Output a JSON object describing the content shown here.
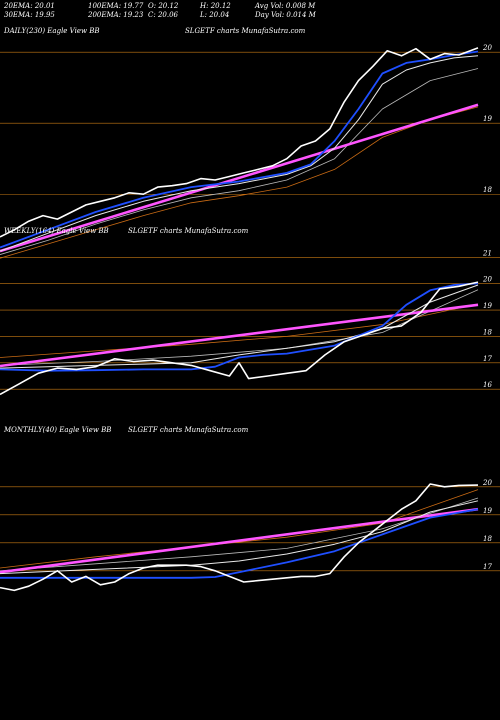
{
  "header": {
    "row1": [
      "20EMA: 20.01",
      "100EMA: 19.77",
      "O: 20.12",
      "H: 20.12",
      "Avg Vol: 0.008  M"
    ],
    "row2": [
      "30EMA: 19.95",
      "200EMA: 19.23",
      "C: 20.06",
      "L: 20.04",
      "Day Vol: 0.014  M"
    ]
  },
  "colors": {
    "background": "#000000",
    "price": "#ffffff",
    "ema20": "#1f4fff",
    "ema30": "#e8e8e8",
    "ema100": "#b8b8b8",
    "ema200": "#c86a14",
    "trend": "#ff55ff",
    "gridline": "#c87a14",
    "text": "#ffffff"
  },
  "chart_data": [
    {
      "type": "line",
      "label": "DAILY(230) Eagle  View  BB",
      "watermark": "SLGETF charts MunafaSutra.com",
      "yticks": [
        18,
        19,
        20
      ],
      "ylim": [
        17.75,
        20.2
      ],
      "xlim": [
        0,
        100
      ],
      "series": [
        {
          "key": "price",
          "x": [
            0,
            3,
            6,
            9,
            12,
            15,
            18,
            21,
            24,
            27,
            30,
            33,
            36,
            39,
            42,
            45,
            48,
            51,
            54,
            57,
            60,
            63,
            66,
            69,
            72,
            75,
            78,
            81,
            84,
            87,
            90,
            93,
            96,
            100
          ],
          "y": [
            17.4,
            17.5,
            17.62,
            17.7,
            17.65,
            17.75,
            17.85,
            17.9,
            17.95,
            18.02,
            18.0,
            18.1,
            18.12,
            18.15,
            18.22,
            18.2,
            18.25,
            18.3,
            18.35,
            18.4,
            18.5,
            18.68,
            18.75,
            18.92,
            19.3,
            19.6,
            19.8,
            20.02,
            19.95,
            20.05,
            19.9,
            19.98,
            19.96,
            20.06
          ]
        },
        {
          "key": "ema20",
          "x": [
            0,
            10,
            20,
            30,
            40,
            50,
            60,
            65,
            70,
            75,
            80,
            85,
            90,
            95,
            100
          ],
          "y": [
            17.25,
            17.5,
            17.75,
            17.95,
            18.1,
            18.18,
            18.3,
            18.42,
            18.75,
            19.2,
            19.7,
            19.85,
            19.9,
            19.96,
            20.01
          ]
        },
        {
          "key": "ema30",
          "x": [
            0,
            10,
            20,
            30,
            40,
            50,
            60,
            65,
            70,
            75,
            80,
            85,
            90,
            95,
            100
          ],
          "y": [
            17.2,
            17.45,
            17.7,
            17.9,
            18.05,
            18.15,
            18.28,
            18.4,
            18.65,
            19.05,
            19.55,
            19.75,
            19.85,
            19.92,
            19.95
          ]
        },
        {
          "key": "ema100",
          "x": [
            0,
            10,
            20,
            30,
            40,
            50,
            60,
            70,
            80,
            90,
            100
          ],
          "y": [
            17.15,
            17.35,
            17.58,
            17.78,
            17.95,
            18.05,
            18.2,
            18.5,
            19.2,
            19.6,
            19.77
          ]
        },
        {
          "key": "ema200",
          "x": [
            0,
            10,
            20,
            30,
            40,
            50,
            60,
            70,
            80,
            90,
            100
          ],
          "y": [
            17.1,
            17.3,
            17.5,
            17.7,
            17.88,
            17.98,
            18.1,
            18.35,
            18.8,
            19.05,
            19.23
          ]
        },
        {
          "key": "trend",
          "x": [
            0,
            100
          ],
          "y": [
            17.2,
            19.26
          ]
        }
      ]
    },
    {
      "type": "line",
      "label": "WEEKLY(164) Eagle  View  BB",
      "watermark": "SLGETF charts MunafaSutra.com",
      "yticks": [
        16,
        17,
        18,
        19,
        20,
        21
      ],
      "ylim": [
        15.4,
        21.2
      ],
      "xlim": [
        0,
        100
      ],
      "series": [
        {
          "key": "price",
          "x": [
            0,
            4,
            8,
            12,
            16,
            20,
            24,
            28,
            32,
            36,
            40,
            44,
            48,
            50,
            52,
            56,
            60,
            64,
            68,
            72,
            76,
            80,
            84,
            88,
            92,
            96,
            100
          ],
          "y": [
            15.8,
            16.2,
            16.6,
            16.8,
            16.75,
            16.85,
            17.15,
            17.05,
            17.1,
            17.0,
            16.9,
            16.7,
            16.5,
            17.0,
            16.4,
            16.5,
            16.6,
            16.7,
            17.3,
            17.8,
            18.05,
            18.3,
            18.4,
            18.9,
            19.8,
            19.9,
            20.06
          ]
        },
        {
          "key": "ema20",
          "x": [
            0,
            10,
            20,
            30,
            40,
            45,
            50,
            55,
            60,
            70,
            80,
            85,
            90,
            95,
            100
          ],
          "y": [
            16.75,
            16.7,
            16.72,
            16.75,
            16.75,
            16.85,
            17.2,
            17.3,
            17.35,
            17.65,
            18.4,
            19.2,
            19.75,
            19.95,
            20.01
          ]
        },
        {
          "key": "ema30",
          "x": [
            0,
            10,
            20,
            30,
            40,
            50,
            60,
            70,
            80,
            90,
            100
          ],
          "y": [
            16.8,
            16.85,
            16.9,
            16.95,
            17.0,
            17.3,
            17.55,
            17.8,
            18.3,
            19.3,
            19.95
          ]
        },
        {
          "key": "ema100",
          "x": [
            0,
            20,
            40,
            60,
            80,
            100
          ],
          "y": [
            16.9,
            17.05,
            17.25,
            17.55,
            18.15,
            19.77
          ]
        },
        {
          "key": "ema200",
          "x": [
            0,
            20,
            40,
            60,
            80,
            100
          ],
          "y": [
            17.2,
            17.45,
            17.7,
            18.0,
            18.45,
            19.23
          ]
        },
        {
          "key": "trend",
          "x": [
            0,
            100
          ],
          "y": [
            16.88,
            19.2
          ]
        }
      ]
    },
    {
      "type": "line",
      "label": "MONTHLY(40) Eagle  View  BB",
      "watermark": "SLGETF charts MunafaSutra.com",
      "yticks": [
        17,
        18,
        19,
        20
      ],
      "ylim": [
        15.6,
        20.6
      ],
      "xlim": [
        0,
        100
      ],
      "series": [
        {
          "key": "price",
          "x": [
            0,
            3,
            6,
            9,
            12,
            15,
            18,
            21,
            24,
            27,
            30,
            33,
            36,
            39,
            42,
            45,
            48,
            51,
            54,
            57,
            60,
            63,
            66,
            69,
            72,
            75,
            78,
            81,
            84,
            87,
            90,
            93,
            96,
            100
          ],
          "y": [
            16.4,
            16.3,
            16.45,
            16.7,
            17.0,
            16.6,
            16.8,
            16.5,
            16.6,
            16.9,
            17.1,
            17.2,
            17.2,
            17.2,
            17.15,
            17.0,
            16.8,
            16.6,
            16.65,
            16.7,
            16.75,
            16.8,
            16.8,
            16.9,
            17.5,
            18.0,
            18.4,
            18.8,
            19.2,
            19.5,
            20.1,
            20.0,
            20.05,
            20.06
          ]
        },
        {
          "key": "ema20",
          "x": [
            0,
            20,
            40,
            45,
            50,
            60,
            70,
            80,
            90,
            100
          ],
          "y": [
            16.75,
            16.75,
            16.75,
            16.78,
            16.95,
            17.3,
            17.7,
            18.3,
            18.9,
            19.2
          ]
        },
        {
          "key": "ema30",
          "x": [
            0,
            20,
            40,
            50,
            60,
            70,
            80,
            90,
            100
          ],
          "y": [
            16.9,
            17.05,
            17.2,
            17.35,
            17.6,
            17.95,
            18.4,
            19.1,
            19.5
          ]
        },
        {
          "key": "ema100",
          "x": [
            0,
            20,
            40,
            60,
            80,
            100
          ],
          "y": [
            17.0,
            17.25,
            17.5,
            17.8,
            18.5,
            19.6
          ]
        },
        {
          "key": "ema200",
          "x": [
            0,
            20,
            40,
            60,
            80,
            100
          ],
          "y": [
            17.1,
            17.5,
            17.85,
            18.2,
            18.7,
            19.9
          ]
        },
        {
          "key": "trend",
          "x": [
            0,
            100
          ],
          "y": [
            16.95,
            19.2
          ]
        }
      ]
    }
  ]
}
